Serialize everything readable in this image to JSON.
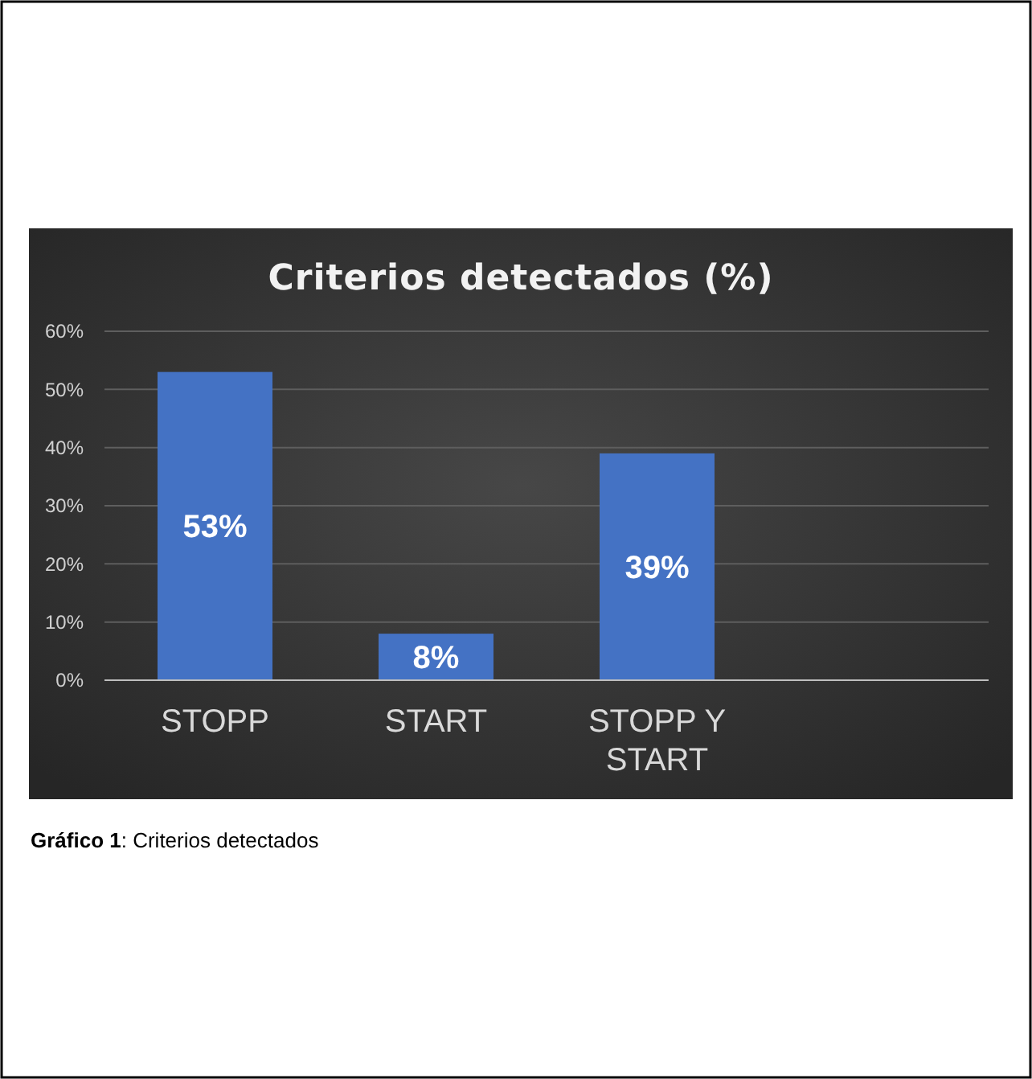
{
  "chart_data": {
    "type": "bar",
    "title": "Criterios detectados (%)",
    "categories": [
      "STOPP",
      "START",
      "STOPP Y START",
      null
    ],
    "values": [
      53,
      8,
      39,
      null
    ],
    "value_labels": [
      "53%",
      "8%",
      "39%",
      null
    ],
    "color": "#4472c4",
    "ylim": [
      0,
      60
    ],
    "yticks": [
      {
        "value": 0,
        "label": "0%"
      },
      {
        "value": 10,
        "label": "10%"
      },
      {
        "value": 20,
        "label": "20%"
      },
      {
        "value": 30,
        "label": "30%"
      },
      {
        "value": 40,
        "label": "40%"
      },
      {
        "value": 50,
        "label": "50%"
      },
      {
        "value": 60,
        "label": "60%"
      }
    ],
    "grid": "y",
    "annotations": [
      "Gráfico 1: Criterios detectados"
    ]
  }
}
